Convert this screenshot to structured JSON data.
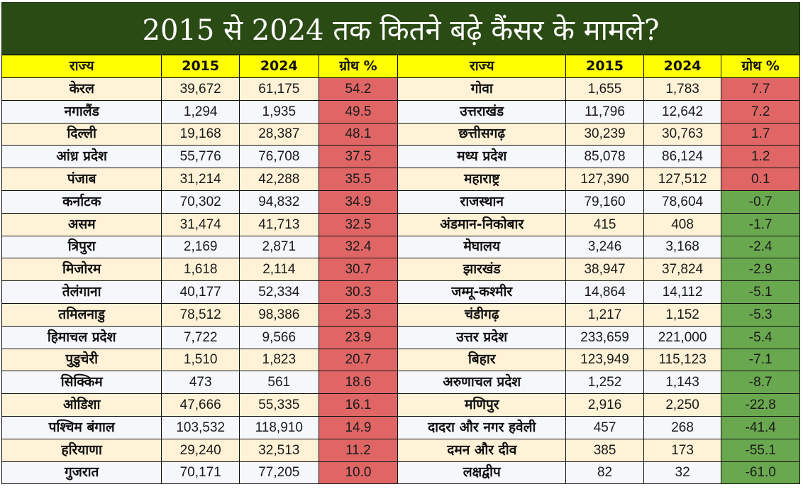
{
  "title": "2015 से 2024 तक कितने बढ़े कैंसर के मामले?",
  "headers": [
    "राज्य",
    "2015",
    "2024",
    "ग्रोथ %"
  ],
  "colors": {
    "title_bg": "#2a4b14",
    "header_bg": "#ffff00",
    "row_odd_bg": "#fff2d6",
    "row_even_bg": "#f5f7fa",
    "growth_positive": "#e06666",
    "growth_negative": "#6aa84f"
  },
  "left_table": [
    {
      "state": "केरल",
      "y2015": "39,672",
      "y2024": "61,175",
      "growth": "54.2"
    },
    {
      "state": "नगालैंड",
      "y2015": "1,294",
      "y2024": "1,935",
      "growth": "49.5"
    },
    {
      "state": "दिल्ली",
      "y2015": "19,168",
      "y2024": "28,387",
      "growth": "48.1"
    },
    {
      "state": "आंध्र प्रदेश",
      "y2015": "55,776",
      "y2024": "76,708",
      "growth": "37.5"
    },
    {
      "state": "पंजाब",
      "y2015": "31,214",
      "y2024": "42,288",
      "growth": "35.5"
    },
    {
      "state": "कर्नाटक",
      "y2015": "70,302",
      "y2024": "94,832",
      "growth": "34.9"
    },
    {
      "state": "असम",
      "y2015": "31,474",
      "y2024": "41,713",
      "growth": "32.5"
    },
    {
      "state": "त्रिपुरा",
      "y2015": "2,169",
      "y2024": "2,871",
      "growth": "32.4"
    },
    {
      "state": "मिजोरम",
      "y2015": "1,618",
      "y2024": "2,114",
      "growth": "30.7"
    },
    {
      "state": "तेलंगाना",
      "y2015": "40,177",
      "y2024": "52,334",
      "growth": "30.3"
    },
    {
      "state": "तमिलनाडु",
      "y2015": "78,512",
      "y2024": "98,386",
      "growth": "25.3"
    },
    {
      "state": "हिमाचल प्रदेश",
      "y2015": "7,722",
      "y2024": "9,566",
      "growth": "23.9"
    },
    {
      "state": "पुडुचेरी",
      "y2015": "1,510",
      "y2024": "1,823",
      "growth": "20.7"
    },
    {
      "state": "सिक्किम",
      "y2015": "473",
      "y2024": "561",
      "growth": "18.6"
    },
    {
      "state": "ओडिशा",
      "y2015": "47,666",
      "y2024": "55,335",
      "growth": "16.1"
    },
    {
      "state": "पश्चिम बंगाल",
      "y2015": "103,532",
      "y2024": "118,910",
      "growth": "14.9"
    },
    {
      "state": "हरियाणा",
      "y2015": "29,240",
      "y2024": "32,513",
      "growth": "11.2"
    },
    {
      "state": "गुजरात",
      "y2015": "70,171",
      "y2024": "77,205",
      "growth": "10.0"
    }
  ],
  "right_table": [
    {
      "state": "गोवा",
      "y2015": "1,655",
      "y2024": "1,783",
      "growth": "7.7"
    },
    {
      "state": "उत्तराखंड",
      "y2015": "11,796",
      "y2024": "12,642",
      "growth": "7.2"
    },
    {
      "state": "छत्तीसगढ़",
      "y2015": "30,239",
      "y2024": "30,763",
      "growth": "1.7"
    },
    {
      "state": "मध्य प्रदेश",
      "y2015": "85,078",
      "y2024": "86,124",
      "growth": "1.2"
    },
    {
      "state": "महाराष्ट्र",
      "y2015": "127,390",
      "y2024": "127,512",
      "growth": "0.1"
    },
    {
      "state": "राजस्थान",
      "y2015": "79,160",
      "y2024": "78,604",
      "growth": "-0.7"
    },
    {
      "state": "अंडमान-निकोबार",
      "y2015": "415",
      "y2024": "408",
      "growth": "-1.7"
    },
    {
      "state": "मेघालय",
      "y2015": "3,246",
      "y2024": "3,168",
      "growth": "-2.4"
    },
    {
      "state": "झारखंड",
      "y2015": "38,947",
      "y2024": "37,824",
      "growth": "-2.9"
    },
    {
      "state": "जम्मू-कश्मीर",
      "y2015": "14,864",
      "y2024": "14,112",
      "growth": "-5.1"
    },
    {
      "state": "चंडीगढ़",
      "y2015": "1,217",
      "y2024": "1,152",
      "growth": "-5.3"
    },
    {
      "state": "उत्तर प्रदेश",
      "y2015": "233,659",
      "y2024": "221,000",
      "growth": "-5.4"
    },
    {
      "state": "बिहार",
      "y2015": "123,949",
      "y2024": "115,123",
      "growth": "-7.1"
    },
    {
      "state": "अरुणाचल प्रदेश",
      "y2015": "1,252",
      "y2024": "1,143",
      "growth": "-8.7"
    },
    {
      "state": "मणिपुर",
      "y2015": "2,916",
      "y2024": "2,250",
      "growth": "-22.8"
    },
    {
      "state": "दादरा और नगर हवेली",
      "y2015": "457",
      "y2024": "268",
      "growth": "-41.4"
    },
    {
      "state": "दमन और दीव",
      "y2015": "385",
      "y2024": "173",
      "growth": "-55.1"
    },
    {
      "state": "लक्षद्वीप",
      "y2015": "82",
      "y2024": "32",
      "growth": "-61.0"
    }
  ]
}
